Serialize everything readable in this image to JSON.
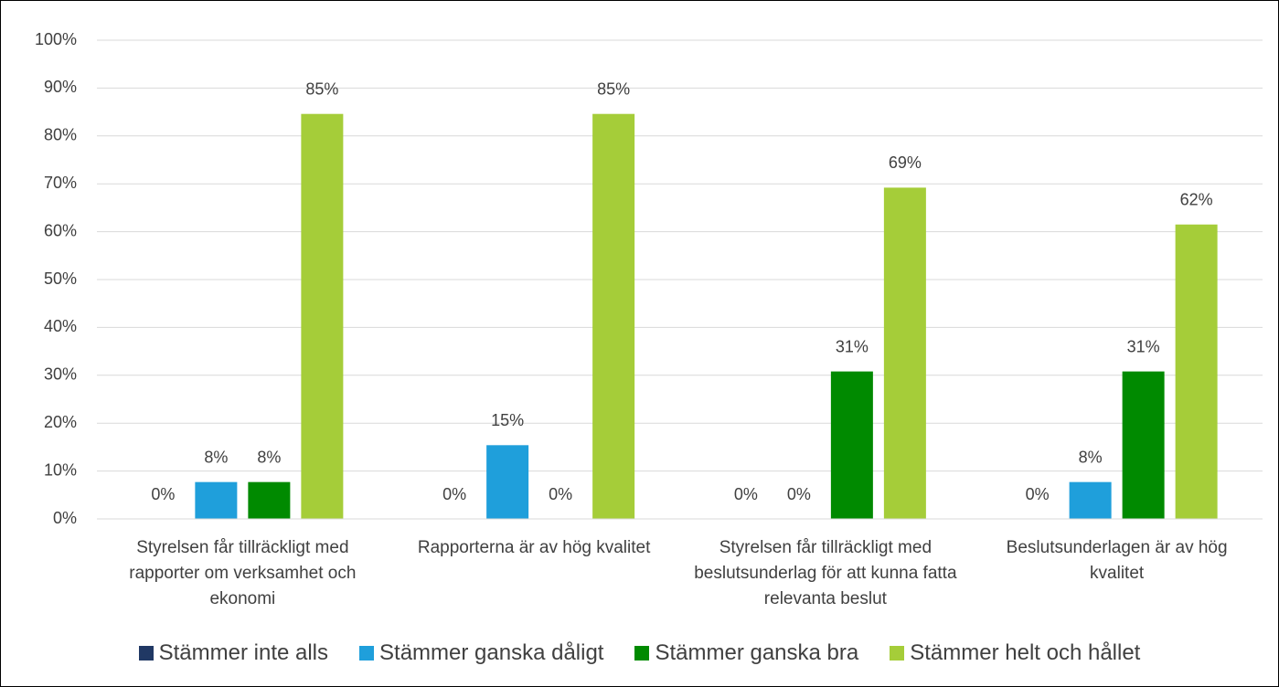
{
  "chart_data": {
    "type": "bar",
    "categories": [
      "Styrelsen får tillräckligt med rapporter om verksamhet och ekonomi",
      "Rapporterna är av hög kvalitet",
      "Styrelsen får tillräckligt med beslutsunderlag för att kunna fatta relevanta beslut",
      "Beslutsunderlagen är av hög kvalitet"
    ],
    "series": [
      {
        "name": "Stämmer inte alls",
        "color": "#203864",
        "values": [
          0,
          0,
          0,
          0
        ],
        "value_labels": [
          "0%",
          "0%",
          "0%",
          "0%"
        ]
      },
      {
        "name": "Stämmer ganska dåligt",
        "color": "#1f9fdb",
        "values": [
          7.7,
          15.4,
          0,
          7.7
        ],
        "value_labels": [
          "8%",
          "15%",
          "0%",
          "8%"
        ]
      },
      {
        "name": "Stämmer ganska bra",
        "color": "#008a00",
        "values": [
          7.7,
          0,
          30.8,
          30.8
        ],
        "value_labels": [
          "8%",
          "0%",
          "31%",
          "31%"
        ]
      },
      {
        "name": "Stämmer helt och hållet",
        "color": "#a5cd39",
        "values": [
          84.6,
          84.6,
          69.2,
          61.5
        ],
        "value_labels": [
          "85%",
          "85%",
          "69%",
          "62%"
        ]
      }
    ],
    "ylim": [
      0,
      100
    ],
    "yticks": [
      {
        "value": 0,
        "label": "0%"
      },
      {
        "value": 10,
        "label": "10%"
      },
      {
        "value": 20,
        "label": "20%"
      },
      {
        "value": 30,
        "label": "30%"
      },
      {
        "value": 40,
        "label": "40%"
      },
      {
        "value": 50,
        "label": "50%"
      },
      {
        "value": 60,
        "label": "60%"
      },
      {
        "value": 70,
        "label": "70%"
      },
      {
        "value": 80,
        "label": "80%"
      },
      {
        "value": 90,
        "label": "90%"
      },
      {
        "value": 100,
        "label": "100%"
      }
    ],
    "grid": true,
    "legend": "bottom"
  }
}
